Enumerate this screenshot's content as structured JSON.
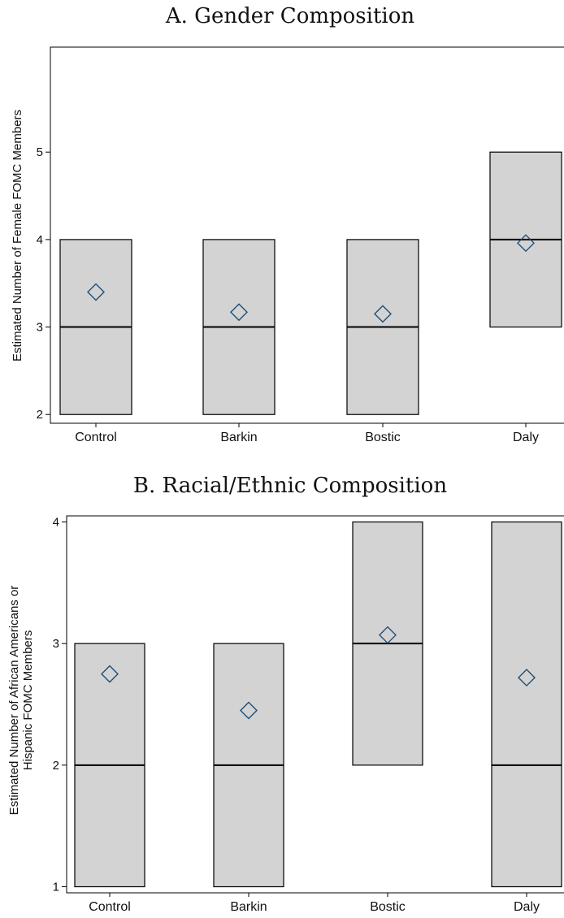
{
  "chart_data": [
    {
      "type": "box",
      "title": "A. Gender Composition",
      "ylabel": "Estimated Number of Female FOMC Members",
      "ylabel_lines": [
        "Estimated Number of Female FOMC Members"
      ],
      "ylim": [
        1.9,
        6.2
      ],
      "yticks": [
        2,
        3,
        4,
        5
      ],
      "grid": false,
      "categories": [
        "Control",
        "Barkin",
        "Bostic",
        "Daly"
      ],
      "boxes": [
        {
          "low": 2,
          "median": 3,
          "high": 4,
          "mean": 3.4
        },
        {
          "low": 2,
          "median": 3,
          "high": 4,
          "mean": 3.17
        },
        {
          "low": 2,
          "median": 3,
          "high": 4,
          "mean": 3.15
        },
        {
          "low": 3,
          "median": 4,
          "high": 5,
          "mean": 3.96
        }
      ]
    },
    {
      "type": "box",
      "title": "B. Racial/Ethnic Composition",
      "ylabel": "Estimated Number of African Americans or Hispanic FOMC Members",
      "ylabel_lines": [
        "Estimated Number of African Americans or",
        "Hispanic FOMC Members"
      ],
      "ylim": [
        0.95,
        4.05
      ],
      "yticks": [
        1,
        2,
        3,
        4
      ],
      "grid": false,
      "categories": [
        "Control",
        "Barkin",
        "Bostic",
        "Daly"
      ],
      "boxes": [
        {
          "low": 1,
          "median": 2,
          "high": 3,
          "mean": 2.75
        },
        {
          "low": 1,
          "median": 2,
          "high": 3,
          "mean": 2.45
        },
        {
          "low": 2,
          "median": 3,
          "high": 4,
          "mean": 3.07
        },
        {
          "low": 1,
          "median": 2,
          "high": 4,
          "mean": 2.72
        }
      ]
    }
  ],
  "colors": {
    "box_fill": "#d3d3d3",
    "box_stroke": "#000000",
    "marker": "#1f4e79",
    "axis": "#000000"
  }
}
